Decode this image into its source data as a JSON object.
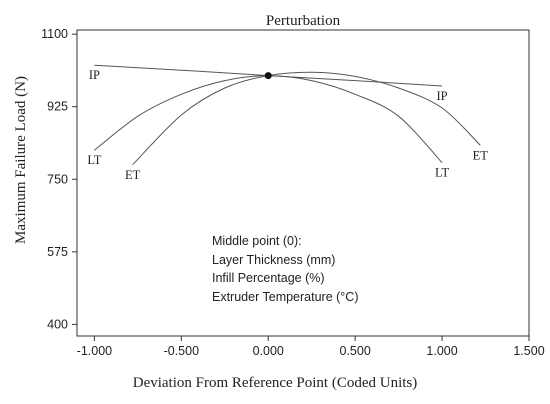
{
  "chart_data": {
    "type": "line",
    "title": "Perturbation",
    "xlabel": "Deviation From Reference Point (Coded Units)",
    "ylabel": "Maximum Failure Load (N)",
    "xlim": [
      -1.1,
      1.5
    ],
    "ylim": [
      372,
      1110
    ],
    "x_ticks": [
      "-1.000",
      "-0.500",
      "0.000",
      "0.500",
      "1.000",
      "1.500"
    ],
    "y_ticks": [
      "400",
      "575",
      "750",
      "925",
      "1100"
    ],
    "grid": false,
    "reference_point": {
      "x": 0.0,
      "y": 1000
    },
    "series": [
      {
        "name": "IP",
        "points": [
          [
            -1.0,
            1025
          ],
          [
            -0.5,
            1013
          ],
          [
            0.0,
            1000
          ],
          [
            0.5,
            988
          ],
          [
            1.0,
            975
          ]
        ],
        "start_label": "IP",
        "end_label": "IP"
      },
      {
        "name": "LT",
        "points": [
          [
            -1.0,
            820
          ],
          [
            -0.75,
            902
          ],
          [
            -0.5,
            955
          ],
          [
            -0.25,
            988
          ],
          [
            0.0,
            1000
          ],
          [
            0.25,
            988
          ],
          [
            0.5,
            955
          ],
          [
            0.75,
            902
          ],
          [
            1.0,
            790
          ]
        ],
        "start_label": "LT",
        "end_label": "LT"
      },
      {
        "name": "ET",
        "points": [
          [
            -0.78,
            785
          ],
          [
            -0.5,
            905
          ],
          [
            -0.25,
            970
          ],
          [
            0.0,
            1000
          ],
          [
            0.25,
            1008
          ],
          [
            0.5,
            998
          ],
          [
            0.75,
            970
          ],
          [
            1.0,
            922
          ],
          [
            1.22,
            832
          ]
        ],
        "start_label": "ET",
        "end_label": "ET"
      }
    ]
  },
  "legend_box": {
    "heading": "Middle point (0):",
    "lines": [
      "Layer Thickness (mm)",
      "Infill Percentage (%)",
      "Extruder Temperature (°C)"
    ]
  }
}
